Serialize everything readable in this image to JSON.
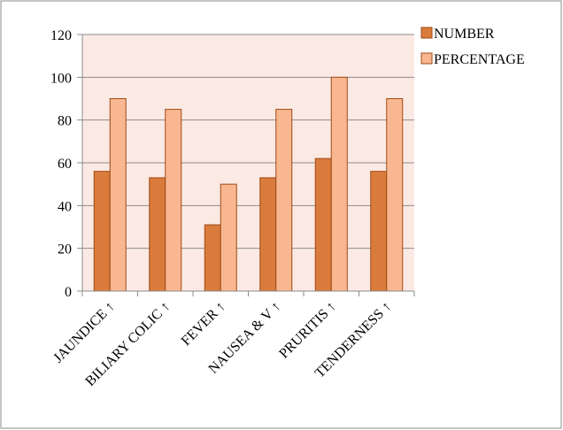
{
  "chart_data": {
    "type": "bar",
    "categories": [
      "JAUNDICE ↑",
      "BILIARY COLIC ↑",
      "FEVER ↑",
      "NAUSEA & V ↑",
      "PRURITIS ↑",
      "TENDERNESS  ↑"
    ],
    "series": [
      {
        "name": "NUMBER",
        "values": [
          56,
          53,
          31,
          53,
          62,
          56
        ],
        "color": "#D97B3B"
      },
      {
        "name": "PERCENTAGE",
        "values": [
          90,
          85,
          50,
          85,
          100,
          90
        ],
        "color": "#F8B791"
      }
    ],
    "yticks": [
      0,
      20,
      40,
      60,
      80,
      100,
      120
    ],
    "ylim": [
      0,
      120
    ],
    "grid": true,
    "legend_position": "top-right",
    "plot_background": "#FBE9E4",
    "title": "",
    "xlabel": "",
    "ylabel": ""
  }
}
